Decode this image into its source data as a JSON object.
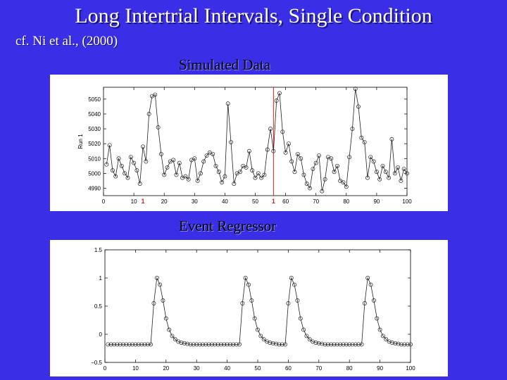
{
  "title": "Long Intertrial Intervals, Single Condition",
  "citation": "cf. Ni et al., (2000)",
  "panels": [
    {
      "label": "Simulated Data"
    },
    {
      "label": "Event Regressor"
    }
  ],
  "chart_data": [
    {
      "type": "line",
      "title": "Simulated Data",
      "ylabel": "Run 1",
      "xlim": [
        0,
        100
      ],
      "ylim": [
        4985,
        5058
      ],
      "xticks": [
        0,
        10,
        20,
        30,
        40,
        50,
        60,
        70,
        80,
        90,
        100
      ],
      "yticks": [
        4990,
        5000,
        5010,
        5020,
        5030,
        5040,
        5050
      ],
      "event_markers": [
        {
          "x": 13,
          "label": "1"
        },
        {
          "x": 56,
          "label": "1"
        }
      ],
      "event_tick_colored": [
        20,
        80
      ],
      "vline_x": 56,
      "x": [
        1,
        2,
        3,
        4,
        5,
        6,
        7,
        8,
        9,
        10,
        11,
        12,
        13,
        14,
        15,
        16,
        17,
        18,
        19,
        20,
        21,
        22,
        23,
        24,
        25,
        26,
        27,
        28,
        29,
        30,
        31,
        32,
        33,
        34,
        35,
        36,
        37,
        38,
        39,
        40,
        41,
        42,
        43,
        44,
        45,
        46,
        47,
        48,
        49,
        50,
        51,
        52,
        53,
        54,
        55,
        56,
        57,
        58,
        59,
        60,
        61,
        62,
        63,
        64,
        65,
        66,
        67,
        68,
        69,
        70,
        71,
        72,
        73,
        74,
        75,
        76,
        77,
        78,
        79,
        80,
        81,
        82,
        83,
        84,
        85,
        86,
        87,
        88,
        89,
        90,
        91,
        92,
        93,
        94,
        95,
        96,
        97,
        98,
        99,
        100
      ],
      "values": [
        5006,
        5019,
        5002,
        4998,
        5010,
        5005,
        5000,
        4997,
        5011,
        5007,
        5002,
        4993,
        5018,
        5008,
        5040,
        5052,
        5053,
        5031,
        5013,
        4999,
        5004,
        5008,
        5009,
        4999,
        5007,
        4997,
        4998,
        4996,
        5009,
        5010,
        4995,
        5000,
        5008,
        5012,
        5014,
        5013,
        5005,
        5001,
        4994,
        4998,
        5047,
        5021,
        4993,
        5000,
        5001,
        5005,
        5004,
        5015,
        5002,
        4997,
        5000,
        4997,
        4999,
        5016,
        5030,
        5015,
        5049,
        5054,
        5028,
        5014,
        5020,
        5008,
        5001,
        5013,
        5010,
        4999,
        4993,
        4990,
        5003,
        5007,
        5012,
        4988,
        4996,
        5011,
        5010,
        5001,
        5005,
        4995,
        4994,
        4991,
        5011,
        5030,
        5057,
        5045,
        5024,
        5021,
        4997,
        5011,
        5008,
        5001,
        4996,
        5005,
        5001,
        4997,
        5023,
        5000,
        5004,
        4995,
        5003,
        5000
      ]
    },
    {
      "type": "line",
      "title": "Event Regressor",
      "xlim": [
        0,
        100
      ],
      "ylim": [
        -0.5,
        1.5
      ],
      "xticks": [
        0,
        10,
        20,
        30,
        40,
        50,
        60,
        70,
        80,
        90,
        100
      ],
      "yticks": [
        -0.5,
        0,
        0.5,
        1,
        1.5
      ],
      "ytick_labels": [
        "−0.5",
        "0",
        "0.5",
        "1",
        "1.5"
      ],
      "x": [
        1,
        2,
        3,
        4,
        5,
        6,
        7,
        8,
        9,
        10,
        11,
        12,
        13,
        14,
        15,
        16,
        17,
        18,
        19,
        20,
        21,
        22,
        23,
        24,
        25,
        26,
        27,
        28,
        29,
        30,
        31,
        32,
        33,
        34,
        35,
        36,
        37,
        38,
        39,
        40,
        41,
        42,
        43,
        44,
        45,
        46,
        47,
        48,
        49,
        50,
        51,
        52,
        53,
        54,
        55,
        56,
        57,
        58,
        59,
        60,
        61,
        62,
        63,
        64,
        65,
        66,
        67,
        68,
        69,
        70,
        71,
        72,
        73,
        74,
        75,
        76,
        77,
        78,
        79,
        80,
        81,
        82,
        83,
        84,
        85,
        86,
        87,
        88,
        89,
        90,
        91,
        92,
        93,
        94,
        95,
        96,
        97,
        98,
        99,
        100
      ],
      "values": [
        -0.18,
        -0.18,
        -0.18,
        -0.18,
        -0.18,
        -0.18,
        -0.18,
        -0.18,
        -0.18,
        -0.18,
        -0.18,
        -0.18,
        -0.18,
        -0.18,
        -0.18,
        0.55,
        1.0,
        0.88,
        0.6,
        0.28,
        0.08,
        -0.03,
        -0.09,
        -0.13,
        -0.15,
        -0.16,
        -0.17,
        -0.18,
        -0.18,
        -0.18,
        -0.18,
        -0.18,
        -0.18,
        -0.18,
        -0.18,
        -0.18,
        -0.18,
        -0.18,
        -0.18,
        -0.18,
        -0.18,
        -0.18,
        -0.18,
        -0.18,
        0.55,
        1.0,
        0.88,
        0.6,
        0.28,
        0.08,
        -0.03,
        -0.09,
        -0.13,
        -0.15,
        -0.16,
        -0.17,
        -0.18,
        -0.18,
        -0.18,
        0.55,
        1.0,
        0.88,
        0.6,
        0.28,
        0.08,
        -0.03,
        -0.09,
        -0.13,
        -0.15,
        -0.16,
        -0.17,
        -0.18,
        -0.18,
        -0.18,
        -0.18,
        -0.18,
        -0.18,
        -0.18,
        -0.18,
        -0.18,
        -0.18,
        -0.18,
        -0.18,
        -0.18,
        0.55,
        1.0,
        0.88,
        0.6,
        0.28,
        0.08,
        -0.03,
        -0.09,
        -0.13,
        -0.15,
        -0.16,
        -0.17,
        -0.18,
        -0.18,
        -0.18,
        -0.18
      ]
    }
  ]
}
